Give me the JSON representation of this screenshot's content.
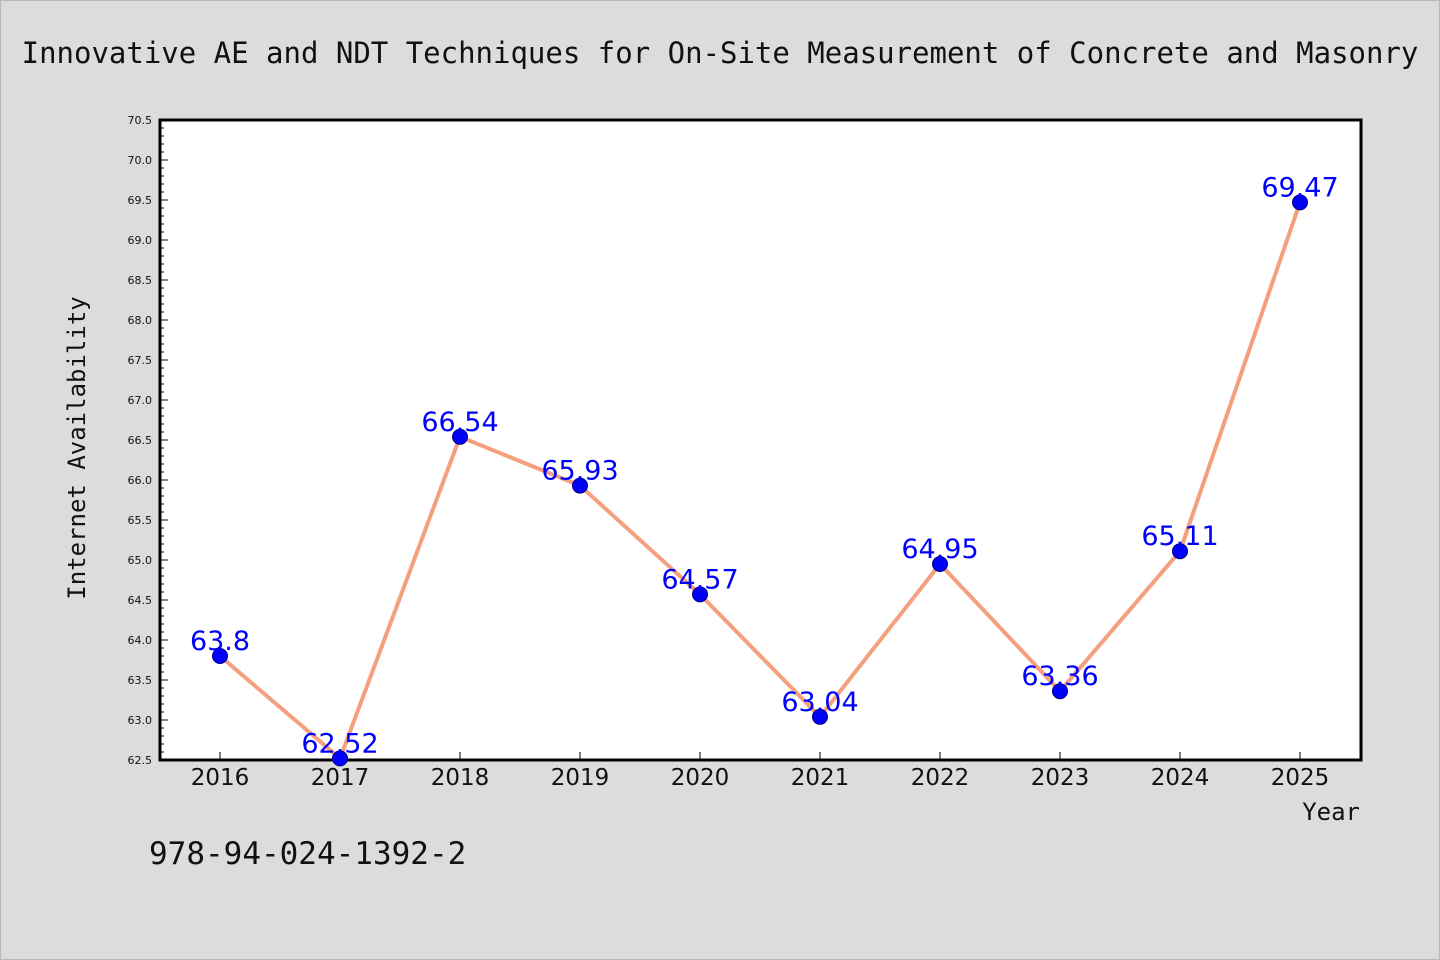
{
  "chart_data": {
    "type": "line",
    "title": "Innovative AE and NDT Techniques for On-Site Measurement of Concrete and Masonry",
    "xlabel": "Year",
    "ylabel": "Internet Availability",
    "categories": [
      "2016",
      "2017",
      "2018",
      "2019",
      "2020",
      "2021",
      "2022",
      "2023",
      "2024",
      "2025"
    ],
    "series": [
      {
        "values": [
          63.8,
          62.52,
          66.54,
          65.93,
          64.57,
          63.04,
          64.95,
          63.36,
          65.11,
          69.47
        ],
        "labels": [
          "63.8",
          "62.52",
          "66.54",
          "65.93",
          "64.57",
          "63.04",
          "64.95",
          "63.36",
          "65.11",
          "69.47"
        ]
      }
    ],
    "ylim": [
      62.5,
      70.5
    ],
    "yticks": [
      "62.5",
      "63.0",
      "63.5",
      "64.0",
      "64.5",
      "65.0",
      "65.5",
      "66.0",
      "66.5",
      "67.0",
      "67.5",
      "68.0",
      "68.5",
      "69.0",
      "69.5",
      "70.0",
      "70.5"
    ],
    "grid": false,
    "legend": "none",
    "colors": {
      "line": "#f4a07f",
      "marker": "#0000ff",
      "marker_edge": "#000080",
      "data_label": "#0000ff",
      "plot_background": "#ffffff",
      "figure_background": "#dcdcdc"
    }
  },
  "footer": {
    "isbn": "978-94-024-1392-2"
  }
}
